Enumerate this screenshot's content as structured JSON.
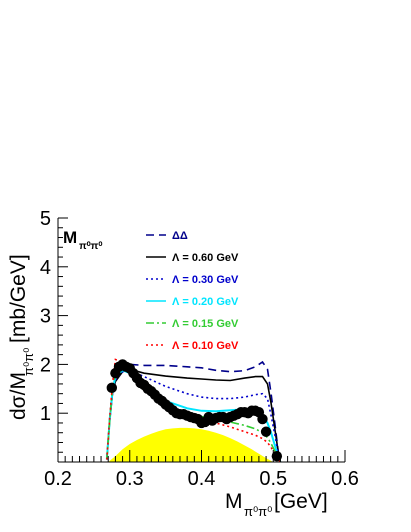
{
  "chart_data": {
    "type": "line",
    "panel_label": {
      "main": "M",
      "sub": "π⁰π⁰"
    },
    "xlabel": {
      "main": "M",
      "sub": "π⁰π⁰",
      "unit": "[GeV]"
    },
    "ylabel": {
      "main": "dσ/M",
      "sub": "π⁰π⁰",
      "unit": "[mb/GeV]"
    },
    "xlim": [
      0.2,
      0.6
    ],
    "ylim": [
      0,
      5
    ],
    "x_ticks": [
      "0.2",
      "0.3",
      "0.4",
      "0.5",
      "0.6"
    ],
    "y_ticks": [
      "1",
      "2",
      "3",
      "4",
      "5"
    ],
    "grid": false,
    "legend_position": "top-center",
    "phase_space": {
      "color": "#ffff00",
      "x": [
        0.27,
        0.28,
        0.29,
        0.3,
        0.31,
        0.32,
        0.33,
        0.34,
        0.35,
        0.36,
        0.37,
        0.38,
        0.39,
        0.4,
        0.41,
        0.42,
        0.43,
        0.44,
        0.45,
        0.46,
        0.47,
        0.48,
        0.49,
        0.5
      ],
      "values": [
        0.0,
        0.12,
        0.26,
        0.37,
        0.45,
        0.52,
        0.58,
        0.63,
        0.67,
        0.69,
        0.7,
        0.7,
        0.69,
        0.67,
        0.64,
        0.6,
        0.55,
        0.49,
        0.42,
        0.34,
        0.26,
        0.17,
        0.08,
        0.0
      ]
    },
    "series": [
      {
        "name": "ΔΔ",
        "color": "#00008b",
        "style": "dashed",
        "x": [
          0.268,
          0.272,
          0.276,
          0.28,
          0.29,
          0.3,
          0.32,
          0.35,
          0.38,
          0.4,
          0.42,
          0.44,
          0.46,
          0.475,
          0.485,
          0.492,
          0.497,
          0.503,
          0.507,
          0.51
        ],
        "values": [
          0.05,
          0.9,
          1.5,
          1.75,
          1.95,
          2.0,
          1.98,
          1.98,
          1.95,
          1.93,
          1.88,
          1.85,
          1.87,
          1.95,
          2.05,
          1.9,
          1.4,
          0.7,
          0.2,
          0.0
        ]
      },
      {
        "name": "Λ = 0.60 GeV",
        "color": "#000000",
        "style": "solid",
        "x": [
          0.268,
          0.272,
          0.276,
          0.28,
          0.29,
          0.3,
          0.32,
          0.35,
          0.38,
          0.4,
          0.42,
          0.44,
          0.46,
          0.475,
          0.485,
          0.492,
          0.497,
          0.503,
          0.507,
          0.51
        ],
        "values": [
          0.05,
          0.85,
          1.4,
          1.65,
          1.85,
          1.9,
          1.82,
          1.76,
          1.72,
          1.7,
          1.68,
          1.67,
          1.72,
          1.75,
          1.75,
          1.6,
          1.2,
          0.6,
          0.2,
          0.0
        ]
      },
      {
        "name": "Λ = 0.30 GeV",
        "color": "#0000cc",
        "style": "dotted",
        "x": [
          0.268,
          0.272,
          0.276,
          0.28,
          0.29,
          0.3,
          0.32,
          0.35,
          0.38,
          0.4,
          0.42,
          0.44,
          0.46,
          0.475,
          0.485,
          0.492,
          0.497,
          0.503,
          0.507,
          0.51
        ],
        "values": [
          0.05,
          0.85,
          1.4,
          1.68,
          1.85,
          1.88,
          1.75,
          1.55,
          1.4,
          1.33,
          1.3,
          1.3,
          1.33,
          1.38,
          1.4,
          1.3,
          0.95,
          0.5,
          0.15,
          0.0
        ]
      },
      {
        "name": "Λ = 0.20 GeV",
        "color": "#00e5ff",
        "style": "solid",
        "x": [
          0.268,
          0.272,
          0.276,
          0.28,
          0.29,
          0.3,
          0.32,
          0.35,
          0.38,
          0.4,
          0.42,
          0.44,
          0.46,
          0.475,
          0.485,
          0.492,
          0.497,
          0.503,
          0.507,
          0.51
        ],
        "values": [
          0.05,
          0.85,
          1.45,
          1.75,
          1.88,
          1.82,
          1.55,
          1.25,
          1.1,
          1.05,
          1.04,
          1.06,
          1.08,
          1.05,
          0.95,
          0.8,
          0.6,
          0.3,
          0.1,
          0.0
        ]
      },
      {
        "name": "Λ = 0.15 GeV",
        "color": "#33cc33",
        "style": "dashdot",
        "x": [
          0.268,
          0.272,
          0.276,
          0.28,
          0.29,
          0.3,
          0.32,
          0.35,
          0.38,
          0.4,
          0.42,
          0.44,
          0.46,
          0.475,
          0.485,
          0.492,
          0.497,
          0.503,
          0.507,
          0.51
        ],
        "values": [
          0.05,
          0.85,
          1.5,
          1.85,
          1.98,
          1.85,
          1.55,
          1.2,
          1.0,
          0.93,
          0.88,
          0.82,
          0.75,
          0.68,
          0.6,
          0.5,
          0.38,
          0.2,
          0.07,
          0.0
        ]
      },
      {
        "name": "Λ = 0.10 GeV",
        "color": "#ff0000",
        "style": "dotted",
        "x": [
          0.268,
          0.272,
          0.276,
          0.28,
          0.29,
          0.3,
          0.32,
          0.35,
          0.38,
          0.4,
          0.42,
          0.44,
          0.46,
          0.475,
          0.485,
          0.492,
          0.497,
          0.503,
          0.507,
          0.51
        ],
        "values": [
          0.05,
          0.9,
          1.6,
          2.1,
          2.05,
          1.85,
          1.5,
          1.15,
          0.95,
          0.87,
          0.8,
          0.72,
          0.62,
          0.55,
          0.48,
          0.4,
          0.3,
          0.15,
          0.05,
          0.0
        ]
      }
    ],
    "data_points": {
      "color": "#000000",
      "x": [
        0.275,
        0.28,
        0.285,
        0.29,
        0.295,
        0.3,
        0.305,
        0.31,
        0.315,
        0.32,
        0.325,
        0.33,
        0.335,
        0.34,
        0.345,
        0.35,
        0.355,
        0.36,
        0.365,
        0.37,
        0.375,
        0.38,
        0.385,
        0.39,
        0.395,
        0.4,
        0.405,
        0.41,
        0.415,
        0.42,
        0.425,
        0.43,
        0.435,
        0.44,
        0.445,
        0.45,
        0.455,
        0.46,
        0.465,
        0.47,
        0.475,
        0.48,
        0.485,
        0.49,
        0.505
      ],
      "values": [
        1.52,
        1.82,
        1.95,
        2.0,
        1.95,
        1.92,
        1.82,
        1.72,
        1.62,
        1.58,
        1.5,
        1.45,
        1.38,
        1.3,
        1.25,
        1.18,
        1.12,
        1.06,
        1.0,
        0.98,
        0.98,
        0.95,
        0.92,
        0.9,
        0.88,
        0.8,
        0.82,
        0.92,
        0.85,
        0.9,
        0.92,
        0.92,
        0.88,
        0.92,
        0.95,
        0.98,
        1.02,
        1.02,
        1.0,
        1.05,
        1.05,
        1.02,
        0.88,
        0.62,
        0.12
      ]
    }
  }
}
